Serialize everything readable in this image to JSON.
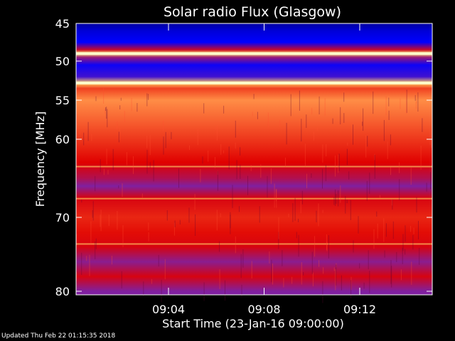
{
  "chart_data": {
    "type": "heatmap",
    "title": "Solar radio Flux (Glasgow)",
    "xlabel": "Start Time (23-Jan-16 09:00:00)",
    "ylabel": "Frequency [MHz]",
    "x_unit": "time (HH:MM)",
    "xlim": [
      "09:00",
      "09:15"
    ],
    "ylim": [
      45,
      80
    ],
    "y_axis_inverted": true,
    "x_ticks": [
      "09:04",
      "09:08",
      "09:12"
    ],
    "y_ticks": [
      45,
      50,
      55,
      60,
      70,
      80
    ],
    "colormap": [
      "#00003c",
      "#0000ff",
      "#8020a0",
      "#e00000",
      "#ff8040",
      "#ffff80"
    ],
    "frequency_profile_mhz": [
      {
        "freq": 45.0,
        "level": 0.1
      },
      {
        "freq": 46.0,
        "level": 0.16
      },
      {
        "freq": 47.5,
        "level": 0.2
      },
      {
        "freq": 48.5,
        "level": 0.55
      },
      {
        "freq": 49.0,
        "level": 0.95
      },
      {
        "freq": 49.5,
        "level": 0.45
      },
      {
        "freq": 50.5,
        "level": 0.22
      },
      {
        "freq": 52.0,
        "level": 0.3
      },
      {
        "freq": 52.8,
        "level": 0.92
      },
      {
        "freq": 53.5,
        "level": 0.7
      },
      {
        "freq": 55.0,
        "level": 0.82
      },
      {
        "freq": 58.0,
        "level": 0.74
      },
      {
        "freq": 61.0,
        "level": 0.66
      },
      {
        "freq": 63.0,
        "level": 0.6
      },
      {
        "freq": 65.0,
        "level": 0.5
      },
      {
        "freq": 66.0,
        "level": 0.4
      },
      {
        "freq": 67.5,
        "level": 0.58
      },
      {
        "freq": 70.0,
        "level": 0.66
      },
      {
        "freq": 72.0,
        "level": 0.62
      },
      {
        "freq": 74.0,
        "level": 0.58
      },
      {
        "freq": 76.0,
        "level": 0.42
      },
      {
        "freq": 78.0,
        "level": 0.58
      },
      {
        "freq": 80.0,
        "level": 0.4
      }
    ],
    "bright_bands_mhz": [
      49.0,
      52.8,
      63.5,
      67.6,
      73.6
    ]
  },
  "footer": {
    "updated": "Updated Thu Feb 22 01:15:35 2018"
  }
}
